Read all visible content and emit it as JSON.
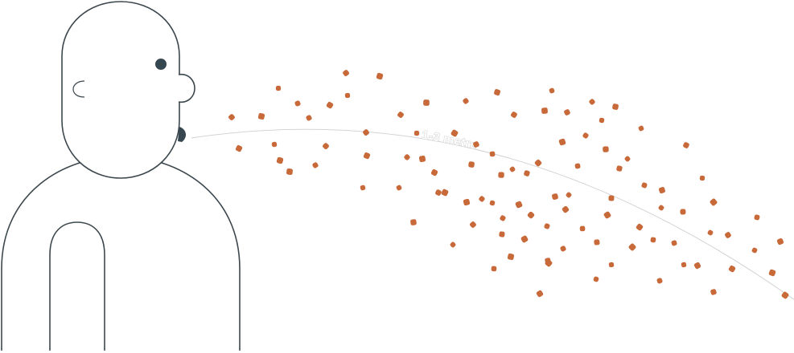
{
  "diagram": {
    "distance_label": "1-3 metre",
    "colors": {
      "droplet": "#c8693a",
      "outline": "#3c474d",
      "eye": "#37474f",
      "curve": "#cfcfcf"
    },
    "droplet_count": 101
  }
}
